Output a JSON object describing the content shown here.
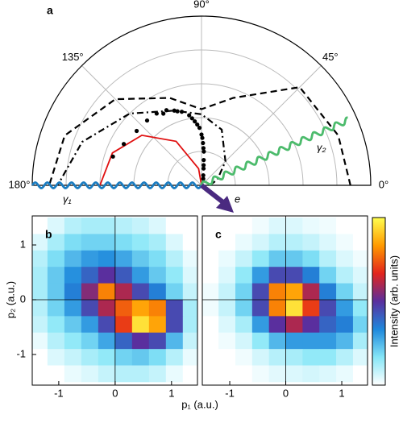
{
  "chart_data": [
    {
      "type": "polar",
      "panel": "a",
      "rlim": [
        0,
        1
      ],
      "rgrid": [
        0.2,
        0.4,
        0.6,
        0.8
      ],
      "angle_ticks": [
        {
          "value": 180,
          "label": "180°"
        },
        {
          "value": 135,
          "label": "135°"
        },
        {
          "value": 90,
          "label": "90°"
        },
        {
          "value": 45,
          "label": "45°"
        },
        {
          "value": 0,
          "label": "0°"
        }
      ],
      "annotations": [
        "γ₁",
        "γ₂",
        "e"
      ],
      "series": [
        {
          "style": "dashed",
          "color": "#000000",
          "theta": [
            0,
            20,
            45,
            70,
            90,
            110,
            135,
            160,
            180
          ],
          "r": [
            0.88,
            0.86,
            0.82,
            0.55,
            0.45,
            0.55,
            0.72,
            0.86,
            0.9
          ]
        },
        {
          "style": "dashdot",
          "color": "#000000",
          "theta": [
            0,
            20,
            45,
            70,
            90,
            110,
            135,
            160,
            180
          ],
          "r": [
            0.05,
            0.1,
            0.2,
            0.35,
            0.42,
            0.47,
            0.6,
            0.75,
            0.85
          ]
        },
        {
          "style": "solid",
          "color": "#e01010",
          "theta": [
            90,
            100,
            120,
            140,
            160,
            180
          ],
          "r": [
            0,
            0.1,
            0.3,
            0.46,
            0.56,
            0.6
          ]
        },
        {
          "style": "points",
          "color": "#000000",
          "theta": [
            162,
            152,
            140,
            130,
            122,
            118,
            115,
            110,
            108,
            105,
            100,
            98,
            96,
            94,
            92,
            90,
            89,
            88,
            87,
            86,
            85,
            84,
            83,
            80,
            75
          ],
          "r": [
            0.55,
            0.52,
            0.5,
            0.5,
            0.5,
            0.48,
            0.49,
            0.47,
            0.46,
            0.45,
            0.42,
            0.4,
            0.38,
            0.36,
            0.34,
            0.3,
            0.28,
            0.25,
            0.22,
            0.2,
            0.15,
            0.12,
            0.1,
            0.06,
            0.04
          ]
        }
      ]
    },
    {
      "type": "heatmap",
      "panel": "b",
      "xlim": [
        -1.47,
        1.46
      ],
      "ylim": [
        -1.56,
        1.53
      ],
      "xticks": [
        -1,
        0,
        1
      ],
      "yticks": [
        -1,
        0,
        1
      ],
      "ylabel": "p₂ (a.u.)",
      "x": [
        -1.35,
        -1.05,
        -0.75,
        -0.45,
        -0.15,
        0.15,
        0.45,
        0.75,
        1.05,
        1.35
      ],
      "y": [
        1.35,
        1.05,
        0.75,
        0.45,
        0.15,
        -0.15,
        -0.45,
        -0.75,
        -1.05,
        -1.35
      ],
      "values": [
        [
          0,
          0.05,
          0.1,
          0.12,
          0.12,
          0.1,
          0.08,
          0.05,
          0,
          0
        ],
        [
          0.05,
          0.12,
          0.18,
          0.2,
          0.2,
          0.18,
          0.15,
          0.12,
          0.05,
          0
        ],
        [
          0.1,
          0.18,
          0.25,
          0.3,
          0.32,
          0.28,
          0.22,
          0.18,
          0.1,
          0.03
        ],
        [
          0.12,
          0.22,
          0.32,
          0.4,
          0.5,
          0.42,
          0.3,
          0.22,
          0.15,
          0.05
        ],
        [
          0.12,
          0.22,
          0.35,
          0.55,
          0.8,
          0.6,
          0.45,
          0.35,
          0.2,
          0.08
        ],
        [
          0.1,
          0.2,
          0.3,
          0.45,
          0.6,
          0.75,
          0.85,
          0.8,
          0.45,
          0.12
        ],
        [
          0.08,
          0.15,
          0.22,
          0.3,
          0.45,
          0.7,
          0.95,
          0.85,
          0.45,
          0.12
        ],
        [
          0.03,
          0.1,
          0.15,
          0.2,
          0.28,
          0.4,
          0.5,
          0.45,
          0.25,
          0.08
        ],
        [
          0,
          0.05,
          0.08,
          0.12,
          0.15,
          0.2,
          0.22,
          0.18,
          0.1,
          0.03
        ],
        [
          0,
          0,
          0.03,
          0.05,
          0.08,
          0.1,
          0.1,
          0.08,
          0.03,
          0
        ]
      ]
    },
    {
      "type": "heatmap",
      "panel": "c",
      "xlim": [
        -1.49,
        1.46
      ],
      "ylim": [
        -1.56,
        1.53
      ],
      "xticks": [
        -1,
        0,
        1
      ],
      "xlabel": "p₁ (a.u.)",
      "x": [
        -1.35,
        -1.05,
        -0.75,
        -0.45,
        -0.15,
        0.15,
        0.45,
        0.75,
        1.05,
        1.35
      ],
      "y": [
        1.35,
        1.05,
        0.75,
        0.45,
        0.15,
        -0.15,
        -0.45,
        -0.75,
        -1.05,
        -1.35
      ],
      "values": [
        [
          0,
          0,
          0,
          0.02,
          0.05,
          0.05,
          0.03,
          0.02,
          0,
          0
        ],
        [
          0,
          0,
          0.03,
          0.06,
          0.1,
          0.1,
          0.08,
          0.05,
          0.02,
          0
        ],
        [
          0,
          0.03,
          0.08,
          0.15,
          0.22,
          0.22,
          0.18,
          0.1,
          0.05,
          0.02
        ],
        [
          0,
          0.05,
          0.15,
          0.3,
          0.45,
          0.45,
          0.35,
          0.2,
          0.1,
          0.05
        ],
        [
          0.02,
          0.08,
          0.2,
          0.45,
          0.8,
          0.85,
          0.6,
          0.35,
          0.2,
          0.08
        ],
        [
          0.02,
          0.08,
          0.2,
          0.45,
          0.8,
          0.95,
          0.7,
          0.45,
          0.3,
          0.15
        ],
        [
          0,
          0.05,
          0.12,
          0.3,
          0.5,
          0.6,
          0.5,
          0.4,
          0.35,
          0.2
        ],
        [
          0,
          0.02,
          0.06,
          0.15,
          0.25,
          0.3,
          0.3,
          0.3,
          0.25,
          0.12
        ],
        [
          0,
          0,
          0.02,
          0.06,
          0.1,
          0.12,
          0.15,
          0.15,
          0.1,
          0.05
        ],
        [
          0,
          0,
          0,
          0.02,
          0.04,
          0.05,
          0.06,
          0.05,
          0.03,
          0
        ]
      ]
    },
    {
      "type": "colorbar",
      "label": "Intensity (arb. units)",
      "colormap": [
        "#ffffff",
        "#86e6f7",
        "#1e88dc",
        "#5a2f9e",
        "#e3241c",
        "#ff9a00",
        "#ffff50"
      ]
    }
  ]
}
